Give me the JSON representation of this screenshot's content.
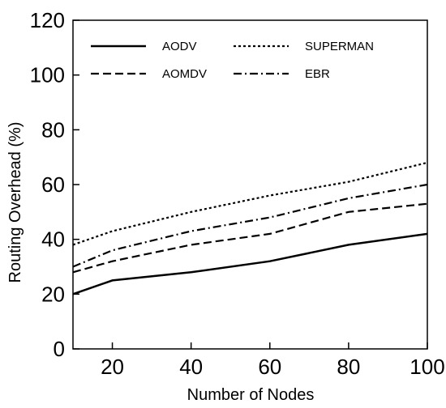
{
  "chart_data": {
    "type": "line",
    "title": "",
    "xlabel": "Number of Nodes",
    "ylabel": "Routing Overhead (%)",
    "xlim": [
      10,
      100
    ],
    "ylim": [
      0,
      120
    ],
    "xticks": [
      20,
      40,
      60,
      80,
      100
    ],
    "yticks": [
      0,
      20,
      40,
      60,
      80,
      100,
      120
    ],
    "grid": false,
    "legend_position": "top",
    "x": [
      10,
      20,
      40,
      60,
      80,
      100
    ],
    "series": [
      {
        "name": "AODV",
        "dash": "solid",
        "values": [
          20,
          25,
          28,
          32,
          38,
          42
        ]
      },
      {
        "name": "AOMDV",
        "dash": "dashed",
        "values": [
          28,
          32,
          38,
          42,
          50,
          53
        ]
      },
      {
        "name": "SUPERMAN",
        "dash": "dotted",
        "values": [
          38,
          43,
          50,
          56,
          61,
          68
        ]
      },
      {
        "name": "EBR",
        "dash": "dashdot",
        "values": [
          30,
          36,
          43,
          48,
          55,
          60
        ]
      }
    ]
  }
}
